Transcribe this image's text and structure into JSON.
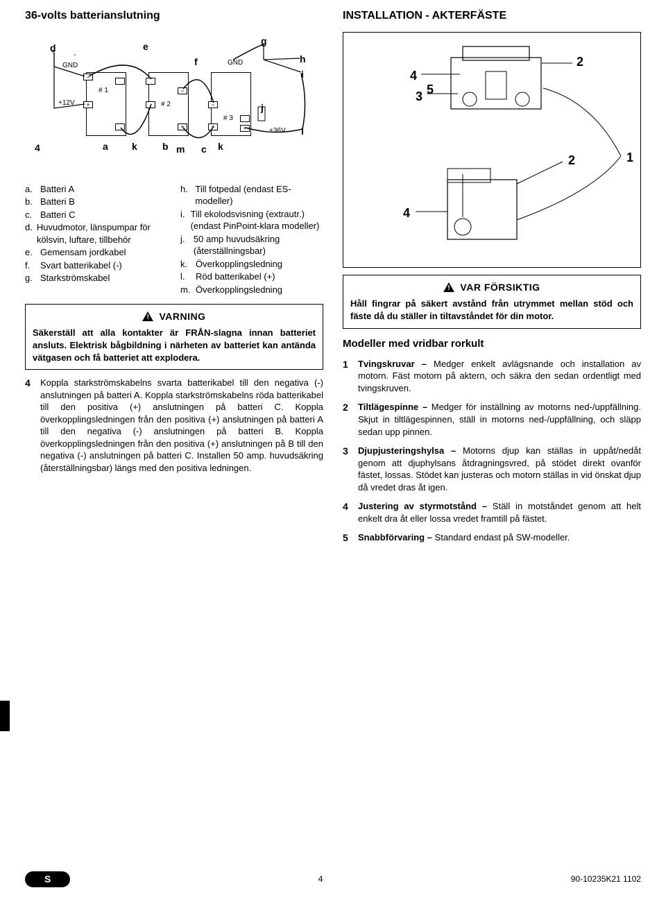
{
  "left": {
    "title": "36-volts batterianslutning",
    "diagram": {
      "labels": {
        "d": "d",
        "e": "e",
        "f": "f",
        "g": "g",
        "h": "h",
        "i": "i",
        "j": "j",
        "k1": "k",
        "k2": "k",
        "l": "l",
        "m": "m",
        "a": "a",
        "b": "b",
        "c": "c",
        "four": "4",
        "gnd1": "GND",
        "gnd2": "GND",
        "plus12": "+12V",
        "plus36": "+36V",
        "hash1": "# 1",
        "hash2": "# 2",
        "hash3": "# 3"
      }
    },
    "legend_left": [
      {
        "k": "a.",
        "v": "Batteri A"
      },
      {
        "k": "b.",
        "v": "Batteri B"
      },
      {
        "k": "c.",
        "v": "Batteri C"
      },
      {
        "k": "d.",
        "v": "Huvudmotor, länspumpar för kölsvin, luftare, tillbehör"
      },
      {
        "k": "e.",
        "v": "Gemensam jordkabel"
      },
      {
        "k": "f.",
        "v": "Svart batterikabel (-)"
      },
      {
        "k": "g.",
        "v": "Starkströmskabel"
      }
    ],
    "legend_right": [
      {
        "k": "h.",
        "v": "Till fotpedal (endast ES-modeller)"
      },
      {
        "k": "i.",
        "v": "Till ekolodsvisning (extrautr.) (endast PinPoint-klara modeller)"
      },
      {
        "k": "j.",
        "v": "50 amp huvudsäkring (återställningsbar)"
      },
      {
        "k": "k.",
        "v": "Överkopplingsledning"
      },
      {
        "k": "l.",
        "v": "Röd batterikabel (+)"
      },
      {
        "k": "m.",
        "v": "Överkopplingsledning"
      }
    ],
    "varning_label": "VARNING",
    "varning_text": "Säkerställ att alla kontakter är FRÅN-slagna innan batteriet ansluts. Elektrisk bågbildning i närheten av batteriet kan antända vätgasen och få batteriet att explodera.",
    "step4_num": "4",
    "step4_text": "Koppla starkströmskabelns svarta batterikabel till den negativa (-) anslutningen på batteri A. Koppla starkströmskabelns röda batterikabel till den positiva (+) anslutningen på batteri C. Koppla överkopplingsledningen från den positiva (+) anslutningen på batteri A till den negativa (-) anslutningen på batteri B. Koppla överkopplingsledningen från den positiva (+) anslutningen på B till den negativa (-) anslutningen på batteri C. Installen 50 amp. huvudsäkring (återställningsbar) längs med den positiva ledningen."
  },
  "right": {
    "title": "INSTALLATION - AKTERFÄSTE",
    "callouts": [
      "1",
      "2",
      "2",
      "3",
      "4",
      "4",
      "5"
    ],
    "care_label": "VAR FÖRSIKTIG",
    "care_text": "Håll fingrar på säkert avstånd från utrymmet mellan stöd och fäste då du ställer in tiltavståndet för din motor.",
    "subhead": "Modeller med vridbar rorkult",
    "items": [
      {
        "n": "1",
        "b": "Tvingskruvar – ",
        "t": "Medger enkelt avlägsnande och installation av motorn. Fäst motorn på aktern, och säkra den sedan ordentligt med tvingskruven."
      },
      {
        "n": "2",
        "b": "Tiltlägespinne – ",
        "t": "Medger för inställning av motorns ned-/uppfällning. Skjut in tiltlägespinnen, ställ in motorns ned-/uppfällning, och släpp sedan upp pinnen."
      },
      {
        "n": "3",
        "b": "Djupjusteringshylsa – ",
        "t": "Motorns djup kan ställas in uppåt/nedåt genom att djuphylsans åtdragningsvred, på stödet direkt ovanför fästet, lossas. Stödet kan justeras och motorn ställas in vid önskat djup då vredet dras åt igen."
      },
      {
        "n": "4",
        "b": "Justering av styrmotstånd – ",
        "t": "Ställ in motståndet genom att helt enkelt dra åt eller lossa vredet framtill på fästet."
      },
      {
        "n": "5",
        "b": "Snabbförvaring – ",
        "t": "Standard endast på SW-modeller."
      }
    ]
  },
  "footer": {
    "s": "S",
    "page": "4",
    "doc": "90-10235K21  1102"
  },
  "colors": {
    "text": "#000000",
    "bg": "#ffffff",
    "border": "#000000"
  }
}
